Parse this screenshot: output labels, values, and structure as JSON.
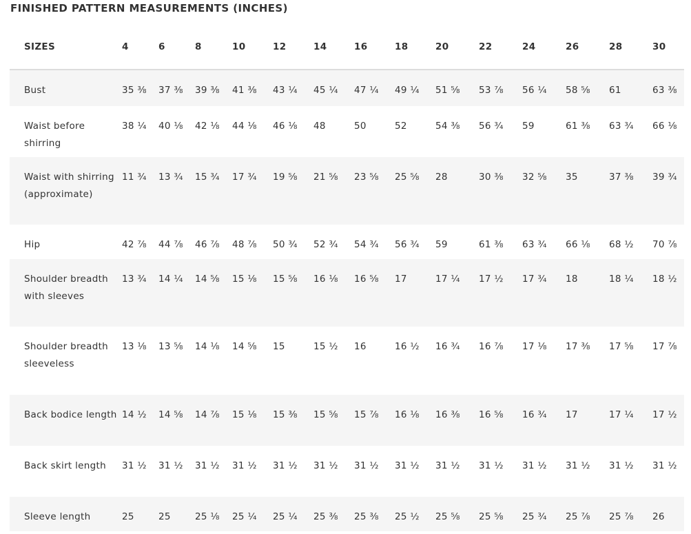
{
  "title": "FINISHED PATTERN MEASUREMENTS (INCHES)",
  "header": {
    "label": "SIZES",
    "sizes": [
      "4",
      "6",
      "8",
      "10",
      "12",
      "14",
      "16",
      "18",
      "20",
      "22",
      "24",
      "26",
      "28",
      "30"
    ]
  },
  "rows": [
    {
      "label": "Bust",
      "values": [
        "35 ⅜",
        "37 ⅜",
        "39 ⅜",
        "41 ⅜",
        "43 ¼",
        "45 ¼",
        "47 ¼",
        "49 ¼",
        "51 ⅝",
        "53 ⅞",
        "56 ¼",
        "58 ⅝",
        "61",
        "63 ⅜"
      ]
    },
    {
      "label": "Waist before shirring",
      "values": [
        "38 ¼",
        "40 ⅛",
        "42 ⅛",
        "44 ⅛",
        "46 ⅛",
        "48",
        "50",
        "52",
        "54 ⅜",
        "56 ¾",
        "59",
        "61 ⅜",
        "63 ¾",
        "66 ⅛"
      ]
    },
    {
      "label": "Waist with shirring (approximate)",
      "values": [
        "11 ¾",
        "13 ¾",
        "15 ¾",
        "17 ¾",
        "19 ⅝",
        "21 ⅝",
        "23 ⅝",
        "25 ⅝",
        "28",
        "30 ⅜",
        "32 ⅝",
        "35",
        "37 ⅜",
        "39 ¾"
      ]
    },
    {
      "label": "Hip",
      "values": [
        "42 ⅞",
        "44 ⅞",
        "46 ⅞",
        "48 ⅞",
        "50 ¾",
        "52 ¾",
        "54 ¾",
        "56 ¾",
        "59",
        "61 ⅜",
        "63 ¾",
        "66 ⅛",
        "68 ½",
        "70 ⅞"
      ]
    },
    {
      "label": "Shoulder breadth with sleeves",
      "values": [
        "13 ¾",
        "14 ¼",
        "14 ⅝",
        "15 ⅛",
        "15 ⅝",
        "16 ⅛",
        "16 ⅝",
        "17",
        "17 ¼",
        "17 ½",
        "17 ¾",
        "18",
        "18 ¼",
        "18 ½"
      ]
    },
    {
      "label": "Shoulder breadth sleeveless",
      "values": [
        "13 ⅛",
        "13 ⅝",
        "14 ⅛",
        "14 ⅝",
        "15",
        "15 ½",
        "16",
        "16 ½",
        "16 ¾",
        "16 ⅞",
        "17 ⅛",
        "17 ⅜",
        "17 ⅝",
        "17 ⅞"
      ]
    },
    {
      "label": "Back bodice length",
      "values": [
        "14 ½",
        "14 ⅝",
        "14 ⅞",
        "15 ⅛",
        "15 ⅜",
        "15 ⅝",
        "15 ⅞",
        "16 ⅛",
        "16 ⅜",
        "16 ⅝",
        "16 ¾",
        "17",
        "17 ¼",
        "17 ½"
      ]
    },
    {
      "label": "Back skirt length",
      "values": [
        "31 ½",
        "31 ½",
        "31 ½",
        "31 ½",
        "31 ½",
        "31 ½",
        "31 ½",
        "31 ½",
        "31 ½",
        "31 ½",
        "31 ½",
        "31 ½",
        "31 ½",
        "31 ½"
      ]
    },
    {
      "label": "Sleeve length",
      "values": [
        "25",
        "25",
        "25 ⅛",
        "25 ¼",
        "25 ¼",
        "25 ⅜",
        "25 ⅜",
        "25 ½",
        "25 ⅝",
        "25 ⅝",
        "25 ¾",
        "25 ⅞",
        "25 ⅞",
        "26"
      ]
    }
  ]
}
